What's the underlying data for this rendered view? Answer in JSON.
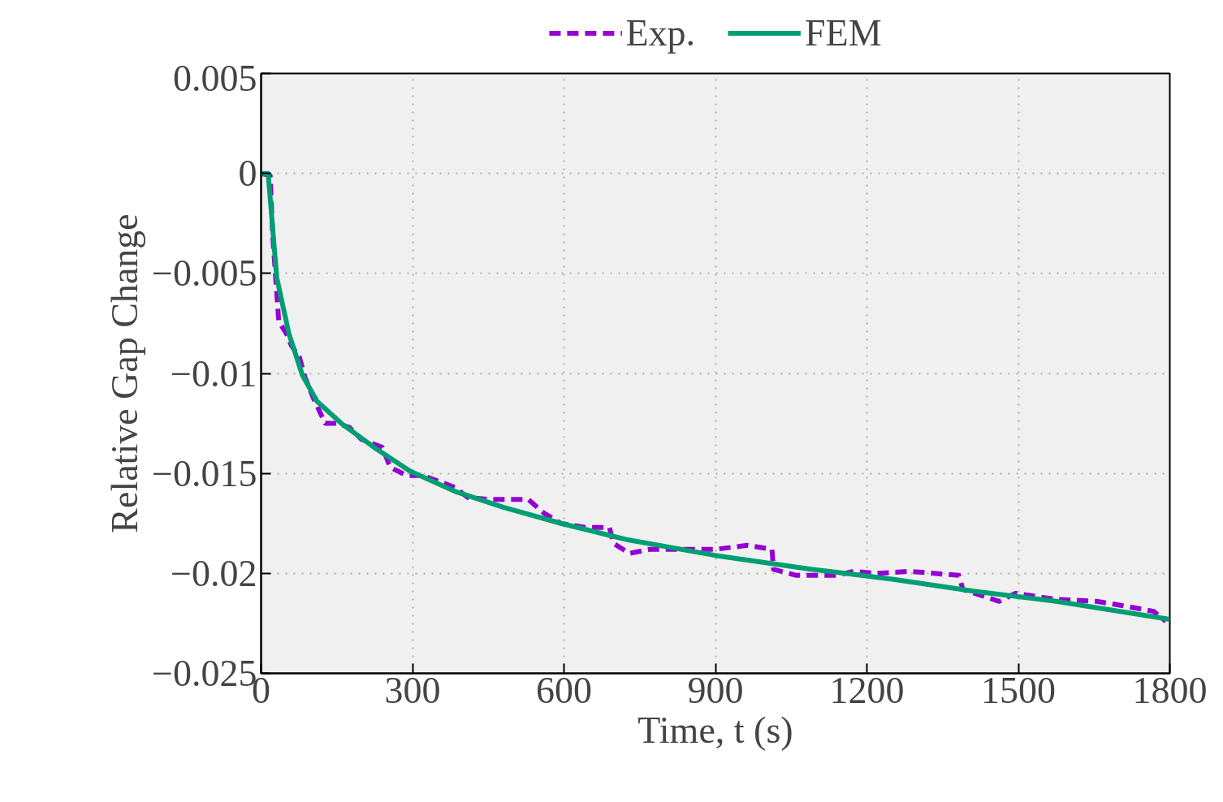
{
  "chart_data": {
    "type": "line",
    "xlabel": "Time, t (s)",
    "ylabel": "Relative Gap Change",
    "xlim": [
      0,
      1800
    ],
    "ylim": [
      -0.025,
      0.005
    ],
    "xticks": [
      0,
      300,
      600,
      900,
      1200,
      1500,
      1800
    ],
    "yticks": [
      {
        "value": 0.005,
        "label": "0.005"
      },
      {
        "value": 0,
        "label": "0"
      },
      {
        "value": -0.005,
        "label": "−0.005"
      },
      {
        "value": -0.01,
        "label": "−0.01"
      },
      {
        "value": -0.015,
        "label": "−0.015"
      },
      {
        "value": -0.02,
        "label": "−0.02"
      },
      {
        "value": -0.025,
        "label": "−0.025"
      }
    ],
    "grid": true,
    "legend": "top",
    "series": [
      {
        "name": "Exp.",
        "color": "#9400d3",
        "line_style": "dashed",
        "x": [
          0,
          18,
          23,
          35,
          50,
          60,
          76,
          87,
          103,
          127,
          151,
          175,
          199,
          240,
          256,
          288,
          320,
          384,
          409,
          449,
          481,
          529,
          561,
          594,
          642,
          690,
          698,
          730,
          770,
          851,
          899,
          931,
          963,
          1012,
          1015,
          1060,
          1140,
          1173,
          1221,
          1285,
          1382,
          1390,
          1462,
          1494,
          1575,
          1655,
          1703,
          1768,
          1792
        ],
        "values": [
          0,
          -0.0001,
          -0.0031,
          -0.0074,
          -0.008,
          -0.0086,
          -0.0092,
          -0.0102,
          -0.0112,
          -0.0125,
          -0.0125,
          -0.0127,
          -0.0133,
          -0.0137,
          -0.0147,
          -0.0151,
          -0.0151,
          -0.0157,
          -0.0162,
          -0.0163,
          -0.0163,
          -0.0163,
          -0.017,
          -0.0175,
          -0.0177,
          -0.0177,
          -0.0185,
          -0.019,
          -0.0188,
          -0.0188,
          -0.0188,
          -0.0187,
          -0.0186,
          -0.0188,
          -0.0198,
          -0.0201,
          -0.0201,
          -0.0199,
          -0.02,
          -0.0199,
          -0.0201,
          -0.0208,
          -0.0214,
          -0.021,
          -0.0213,
          -0.0214,
          -0.0216,
          -0.0219,
          -0.0224
        ]
      },
      {
        "name": "FEM",
        "color": "#009e73",
        "line_style": "solid",
        "x": [
          0,
          14,
          31,
          55,
          82,
          111,
          159,
          224,
          296,
          384,
          481,
          594,
          722,
          899,
          1092,
          1253,
          1414,
          1575,
          1800
        ],
        "values": [
          0,
          0,
          -0.0052,
          -0.008,
          -0.0101,
          -0.0114,
          -0.0125,
          -0.0137,
          -0.0149,
          -0.0159,
          -0.0167,
          -0.0175,
          -0.0183,
          -0.0191,
          -0.0198,
          -0.0203,
          -0.0209,
          -0.0214,
          -0.0223
        ]
      }
    ]
  }
}
